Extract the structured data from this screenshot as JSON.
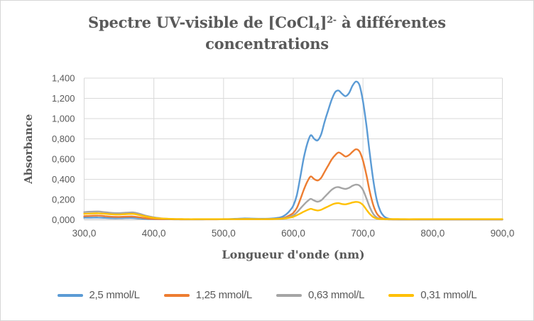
{
  "frame": {
    "background": "#ffffff",
    "border_color": "#d6d6d6"
  },
  "chart_data": {
    "type": "line",
    "title": "Spectre UV-visible de [CoCl4]2- à différentes concentrations",
    "title_rich": {
      "pre": "Spectre UV-visible de [CoCl",
      "sub": "4",
      "bracket": "]",
      "sup": "2-",
      "tail": " à différentes concentrations"
    },
    "xlabel": "Longueur d'onde (nm)",
    "ylabel": "Absorbance",
    "xlim": [
      300,
      900
    ],
    "ylim": [
      0,
      1.4
    ],
    "grid": true,
    "legend_position": "bottom",
    "x_tick_labels": [
      "300,0",
      "400,0",
      "500,0",
      "600,0",
      "700,0",
      "800,0",
      "900,0"
    ],
    "x_tick_values": [
      300,
      400,
      500,
      600,
      700,
      800,
      900
    ],
    "y_tick_labels": [
      "0,000",
      "0,200",
      "0,400",
      "0,600",
      "0,800",
      "1,000",
      "1,200",
      "1,400"
    ],
    "y_tick_values": [
      0,
      0.2,
      0.4,
      0.6,
      0.8,
      1.0,
      1.2,
      1.4
    ],
    "x": [
      300,
      310,
      320,
      330,
      340,
      350,
      360,
      370,
      380,
      390,
      400,
      410,
      420,
      430,
      440,
      450,
      460,
      470,
      480,
      490,
      500,
      510,
      520,
      530,
      540,
      550,
      560,
      570,
      580,
      585,
      590,
      595,
      600,
      605,
      610,
      615,
      620,
      625,
      630,
      635,
      640,
      645,
      650,
      655,
      660,
      665,
      670,
      675,
      680,
      685,
      690,
      695,
      700,
      705,
      710,
      715,
      720,
      725,
      730,
      735,
      740,
      750,
      760,
      780,
      800,
      850,
      900
    ],
    "series": [
      {
        "name": "2,5 mmol/L",
        "color": "#5B9BD5",
        "values": [
          0.02,
          0.021,
          0.022,
          0.019,
          0.016,
          0.016,
          0.018,
          0.018,
          0.013,
          0.009,
          0.007,
          0.006,
          0.005,
          0.004,
          0.004,
          0.004,
          0.004,
          0.004,
          0.005,
          0.005,
          0.006,
          0.008,
          0.01,
          0.013,
          0.012,
          0.01,
          0.01,
          0.013,
          0.022,
          0.033,
          0.055,
          0.09,
          0.14,
          0.24,
          0.42,
          0.61,
          0.75,
          0.835,
          0.8,
          0.785,
          0.845,
          0.97,
          1.08,
          1.185,
          1.26,
          1.277,
          1.245,
          1.222,
          1.252,
          1.325,
          1.366,
          1.33,
          1.17,
          0.93,
          0.64,
          0.38,
          0.19,
          0.085,
          0.035,
          0.015,
          0.007,
          0.004,
          0.003,
          0.003,
          0.003,
          0.003,
          0.003
        ]
      },
      {
        "name": "1,25 mmol/L",
        "color": "#ED7D31",
        "values": [
          0.036,
          0.039,
          0.041,
          0.036,
          0.03,
          0.029,
          0.031,
          0.032,
          0.024,
          0.014,
          0.009,
          0.007,
          0.006,
          0.005,
          0.004,
          0.004,
          0.004,
          0.004,
          0.004,
          0.004,
          0.005,
          0.005,
          0.006,
          0.007,
          0.006,
          0.006,
          0.006,
          0.008,
          0.012,
          0.017,
          0.028,
          0.045,
          0.068,
          0.115,
          0.2,
          0.295,
          0.375,
          0.428,
          0.402,
          0.388,
          0.415,
          0.475,
          0.535,
          0.595,
          0.638,
          0.665,
          0.648,
          0.625,
          0.64,
          0.672,
          0.697,
          0.675,
          0.585,
          0.44,
          0.27,
          0.14,
          0.06,
          0.024,
          0.01,
          0.005,
          0.004,
          0.003,
          0.003,
          0.003,
          0.003,
          0.003,
          0.003
        ]
      },
      {
        "name": "0,63 mmol/L",
        "color": "#A5A5A5",
        "values": [
          0.076,
          0.08,
          0.082,
          0.075,
          0.068,
          0.066,
          0.07,
          0.073,
          0.058,
          0.038,
          0.024,
          0.015,
          0.01,
          0.008,
          0.006,
          0.005,
          0.005,
          0.005,
          0.005,
          0.005,
          0.005,
          0.005,
          0.006,
          0.007,
          0.006,
          0.006,
          0.006,
          0.007,
          0.01,
          0.014,
          0.02,
          0.03,
          0.044,
          0.072,
          0.11,
          0.148,
          0.182,
          0.206,
          0.19,
          0.179,
          0.192,
          0.227,
          0.262,
          0.296,
          0.318,
          0.323,
          0.312,
          0.305,
          0.316,
          0.336,
          0.348,
          0.338,
          0.295,
          0.21,
          0.12,
          0.055,
          0.022,
          0.009,
          0.005,
          0.004,
          0.003,
          0.003,
          0.003,
          0.003,
          0.003,
          0.003,
          0.003
        ]
      },
      {
        "name": "0,31 mmol/L",
        "color": "#FFC000",
        "values": [
          0.059,
          0.062,
          0.064,
          0.059,
          0.054,
          0.052,
          0.056,
          0.058,
          0.046,
          0.03,
          0.019,
          0.013,
          0.01,
          0.008,
          0.007,
          0.006,
          0.006,
          0.006,
          0.006,
          0.006,
          0.006,
          0.006,
          0.006,
          0.007,
          0.007,
          0.006,
          0.006,
          0.007,
          0.009,
          0.011,
          0.015,
          0.021,
          0.03,
          0.045,
          0.062,
          0.08,
          0.096,
          0.108,
          0.099,
          0.092,
          0.099,
          0.116,
          0.132,
          0.149,
          0.161,
          0.164,
          0.156,
          0.153,
          0.161,
          0.171,
          0.177,
          0.171,
          0.146,
          0.1,
          0.056,
          0.026,
          0.012,
          0.008,
          0.007,
          0.007,
          0.007,
          0.007,
          0.006,
          0.006,
          0.006,
          0.006,
          0.006
        ]
      }
    ],
    "style": {
      "text_color": "#595959",
      "gridline_color": "#D9D9D9",
      "axis_line_color": "#BFBFBF",
      "line_width": 2.4
    }
  }
}
